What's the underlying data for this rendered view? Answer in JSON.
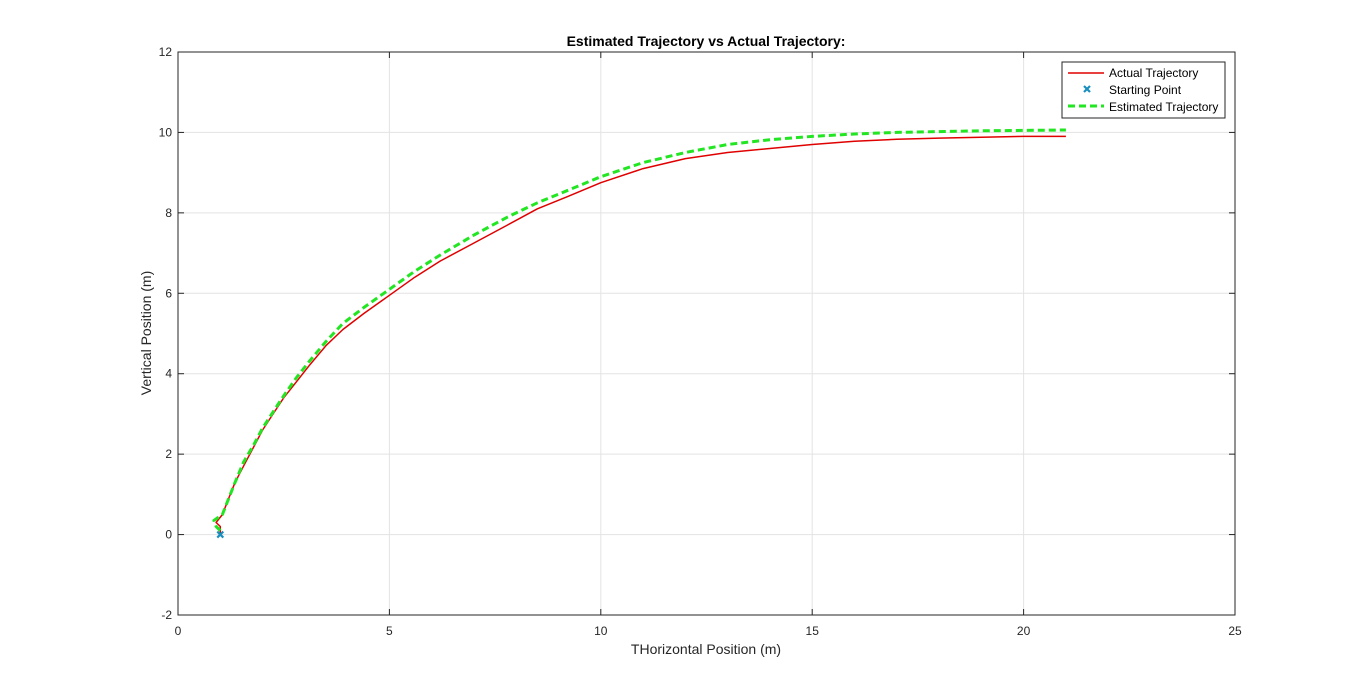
{
  "chart_data": {
    "type": "line",
    "title": "Estimated Trajectory vs Actual Trajectory:",
    "xlabel": "THorizontal Position (m)",
    "ylabel": "Vertical Position (m)",
    "xlim": [
      0,
      25
    ],
    "ylim": [
      -2,
      12
    ],
    "xticks": [
      "0",
      "5",
      "10",
      "15",
      "20",
      "25"
    ],
    "yticks": [
      "-2",
      "0",
      "2",
      "4",
      "6",
      "8",
      "10",
      "12"
    ],
    "grid": true,
    "legend": {
      "position": "top-right",
      "entries": [
        "Actual Trajectory",
        "Starting Point",
        "Estimated Trajectory"
      ]
    },
    "series": [
      {
        "name": "Actual Trajectory",
        "color": "#e00000",
        "style": "solid",
        "x": [
          1.0,
          1.0,
          0.9,
          1.05,
          1.2,
          1.35,
          1.6,
          1.8,
          2.0,
          2.25,
          2.5,
          2.8,
          3.1,
          3.5,
          3.9,
          4.4,
          5.0,
          5.6,
          6.2,
          7.0,
          7.8,
          8.5,
          9.2,
          10.0,
          11.0,
          12.0,
          13.0,
          14.0,
          15.0,
          16.0,
          17.0,
          18.0,
          19.0,
          20.0,
          21.0
        ],
        "y": [
          0.0,
          0.2,
          0.3,
          0.5,
          0.9,
          1.3,
          1.8,
          2.2,
          2.6,
          3.0,
          3.4,
          3.8,
          4.2,
          4.7,
          5.1,
          5.5,
          5.95,
          6.4,
          6.8,
          7.25,
          7.7,
          8.1,
          8.4,
          8.75,
          9.1,
          9.35,
          9.5,
          9.6,
          9.7,
          9.78,
          9.83,
          9.86,
          9.88,
          9.9,
          9.9
        ]
      },
      {
        "name": "Starting Point",
        "color": "#1a8fbf",
        "style": "marker",
        "x": [
          1.0
        ],
        "y": [
          0.0
        ]
      },
      {
        "name": "Estimated Trajectory",
        "color": "#22e622",
        "style": "dashed",
        "x": [
          1.0,
          0.9,
          0.85,
          1.05,
          1.2,
          1.35,
          1.55,
          1.8,
          2.0,
          2.25,
          2.5,
          2.8,
          3.1,
          3.5,
          3.9,
          4.4,
          5.0,
          5.6,
          6.2,
          7.0,
          7.8,
          8.5,
          9.2,
          10.0,
          11.0,
          12.0,
          13.0,
          14.0,
          15.0,
          16.0,
          17.0,
          18.0,
          19.0,
          20.0,
          21.0
        ],
        "y": [
          0.1,
          0.2,
          0.35,
          0.5,
          0.9,
          1.3,
          1.8,
          2.25,
          2.65,
          3.05,
          3.45,
          3.9,
          4.3,
          4.8,
          5.25,
          5.65,
          6.1,
          6.55,
          6.95,
          7.45,
          7.9,
          8.25,
          8.55,
          8.9,
          9.25,
          9.5,
          9.7,
          9.82,
          9.9,
          9.96,
          10.0,
          10.02,
          10.04,
          10.05,
          10.06
        ]
      }
    ]
  }
}
